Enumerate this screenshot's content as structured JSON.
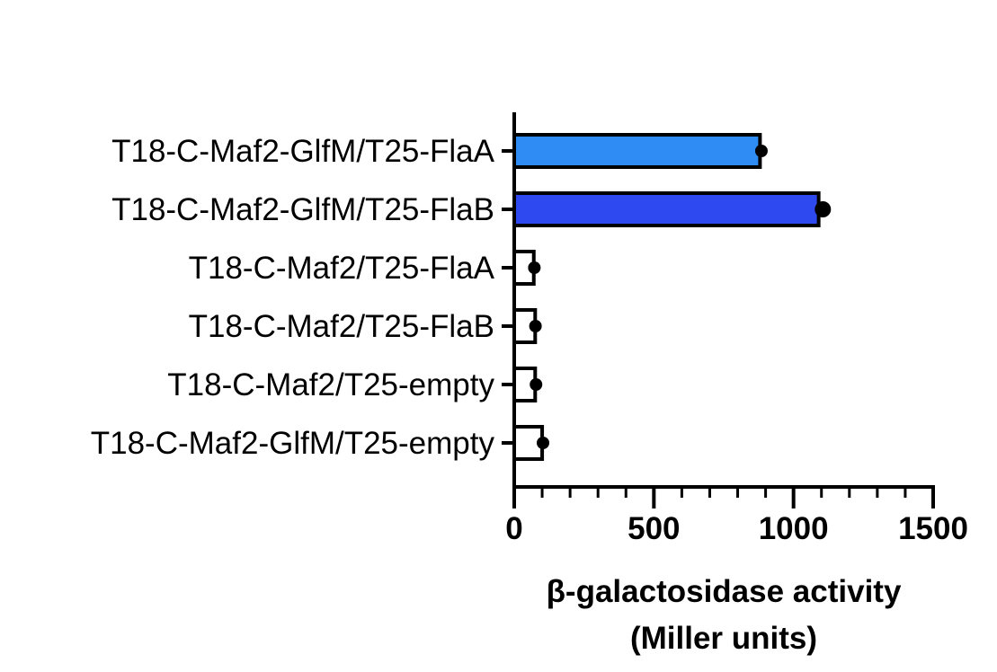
{
  "chart_data": {
    "type": "bar",
    "orientation": "horizontal",
    "categories": [
      "T18-C-Maf2-GlfM/T25-FlaA",
      "T18-C-Maf2-GlfM/T25-FlaB",
      "T18-C-Maf2/T25-FlaA",
      "T18-C-Maf2/T25-FlaB",
      "T18-C-Maf2/T25-empty",
      "T18-C-Maf2-GlfM/T25-empty"
    ],
    "values": [
      880,
      1090,
      70,
      75,
      75,
      100
    ],
    "points": [
      885,
      1105,
      72,
      76,
      78,
      103
    ],
    "bar_colors": [
      "#2f8cf5",
      "#2f49f0",
      "#ffffff",
      "#ffffff",
      "#ffffff",
      "#ffffff"
    ],
    "xlim": [
      0,
      1500
    ],
    "x_ticks": [
      "0",
      "500",
      "1000",
      "1500"
    ],
    "xlabel_lines": [
      "β-galactosidase activity",
      "(Miller units)"
    ],
    "ylabel": "",
    "title": "",
    "grid": false,
    "legend": "none"
  }
}
